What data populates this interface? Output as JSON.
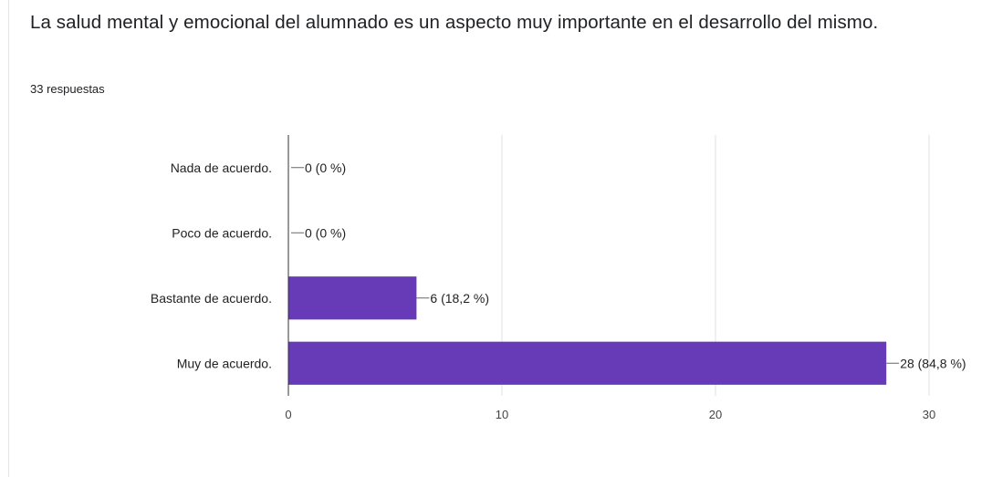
{
  "question": {
    "title": "La salud mental y emocional del alumnado es un aspecto muy importante en el desarrollo del mismo.",
    "responses": "33 respuestas"
  },
  "colors": {
    "bar": "#673ab7",
    "grid": "#e0e0e0",
    "axis": "#333333",
    "leader": "#666666"
  },
  "chart_data": {
    "type": "bar",
    "orientation": "horizontal",
    "categories": [
      "Nada de acuerdo.",
      "Poco de acuerdo.",
      "Bastante de acuerdo.",
      "Muy de acuerdo."
    ],
    "values": [
      0,
      0,
      6,
      28
    ],
    "data_labels": [
      "0 (0 %)",
      "0 (0 %)",
      "6 (18,2 %)",
      "28 (84,8 %)"
    ],
    "xlim": [
      0,
      30
    ],
    "xticks": [
      "0",
      "10",
      "20",
      "30"
    ],
    "grid": true
  }
}
